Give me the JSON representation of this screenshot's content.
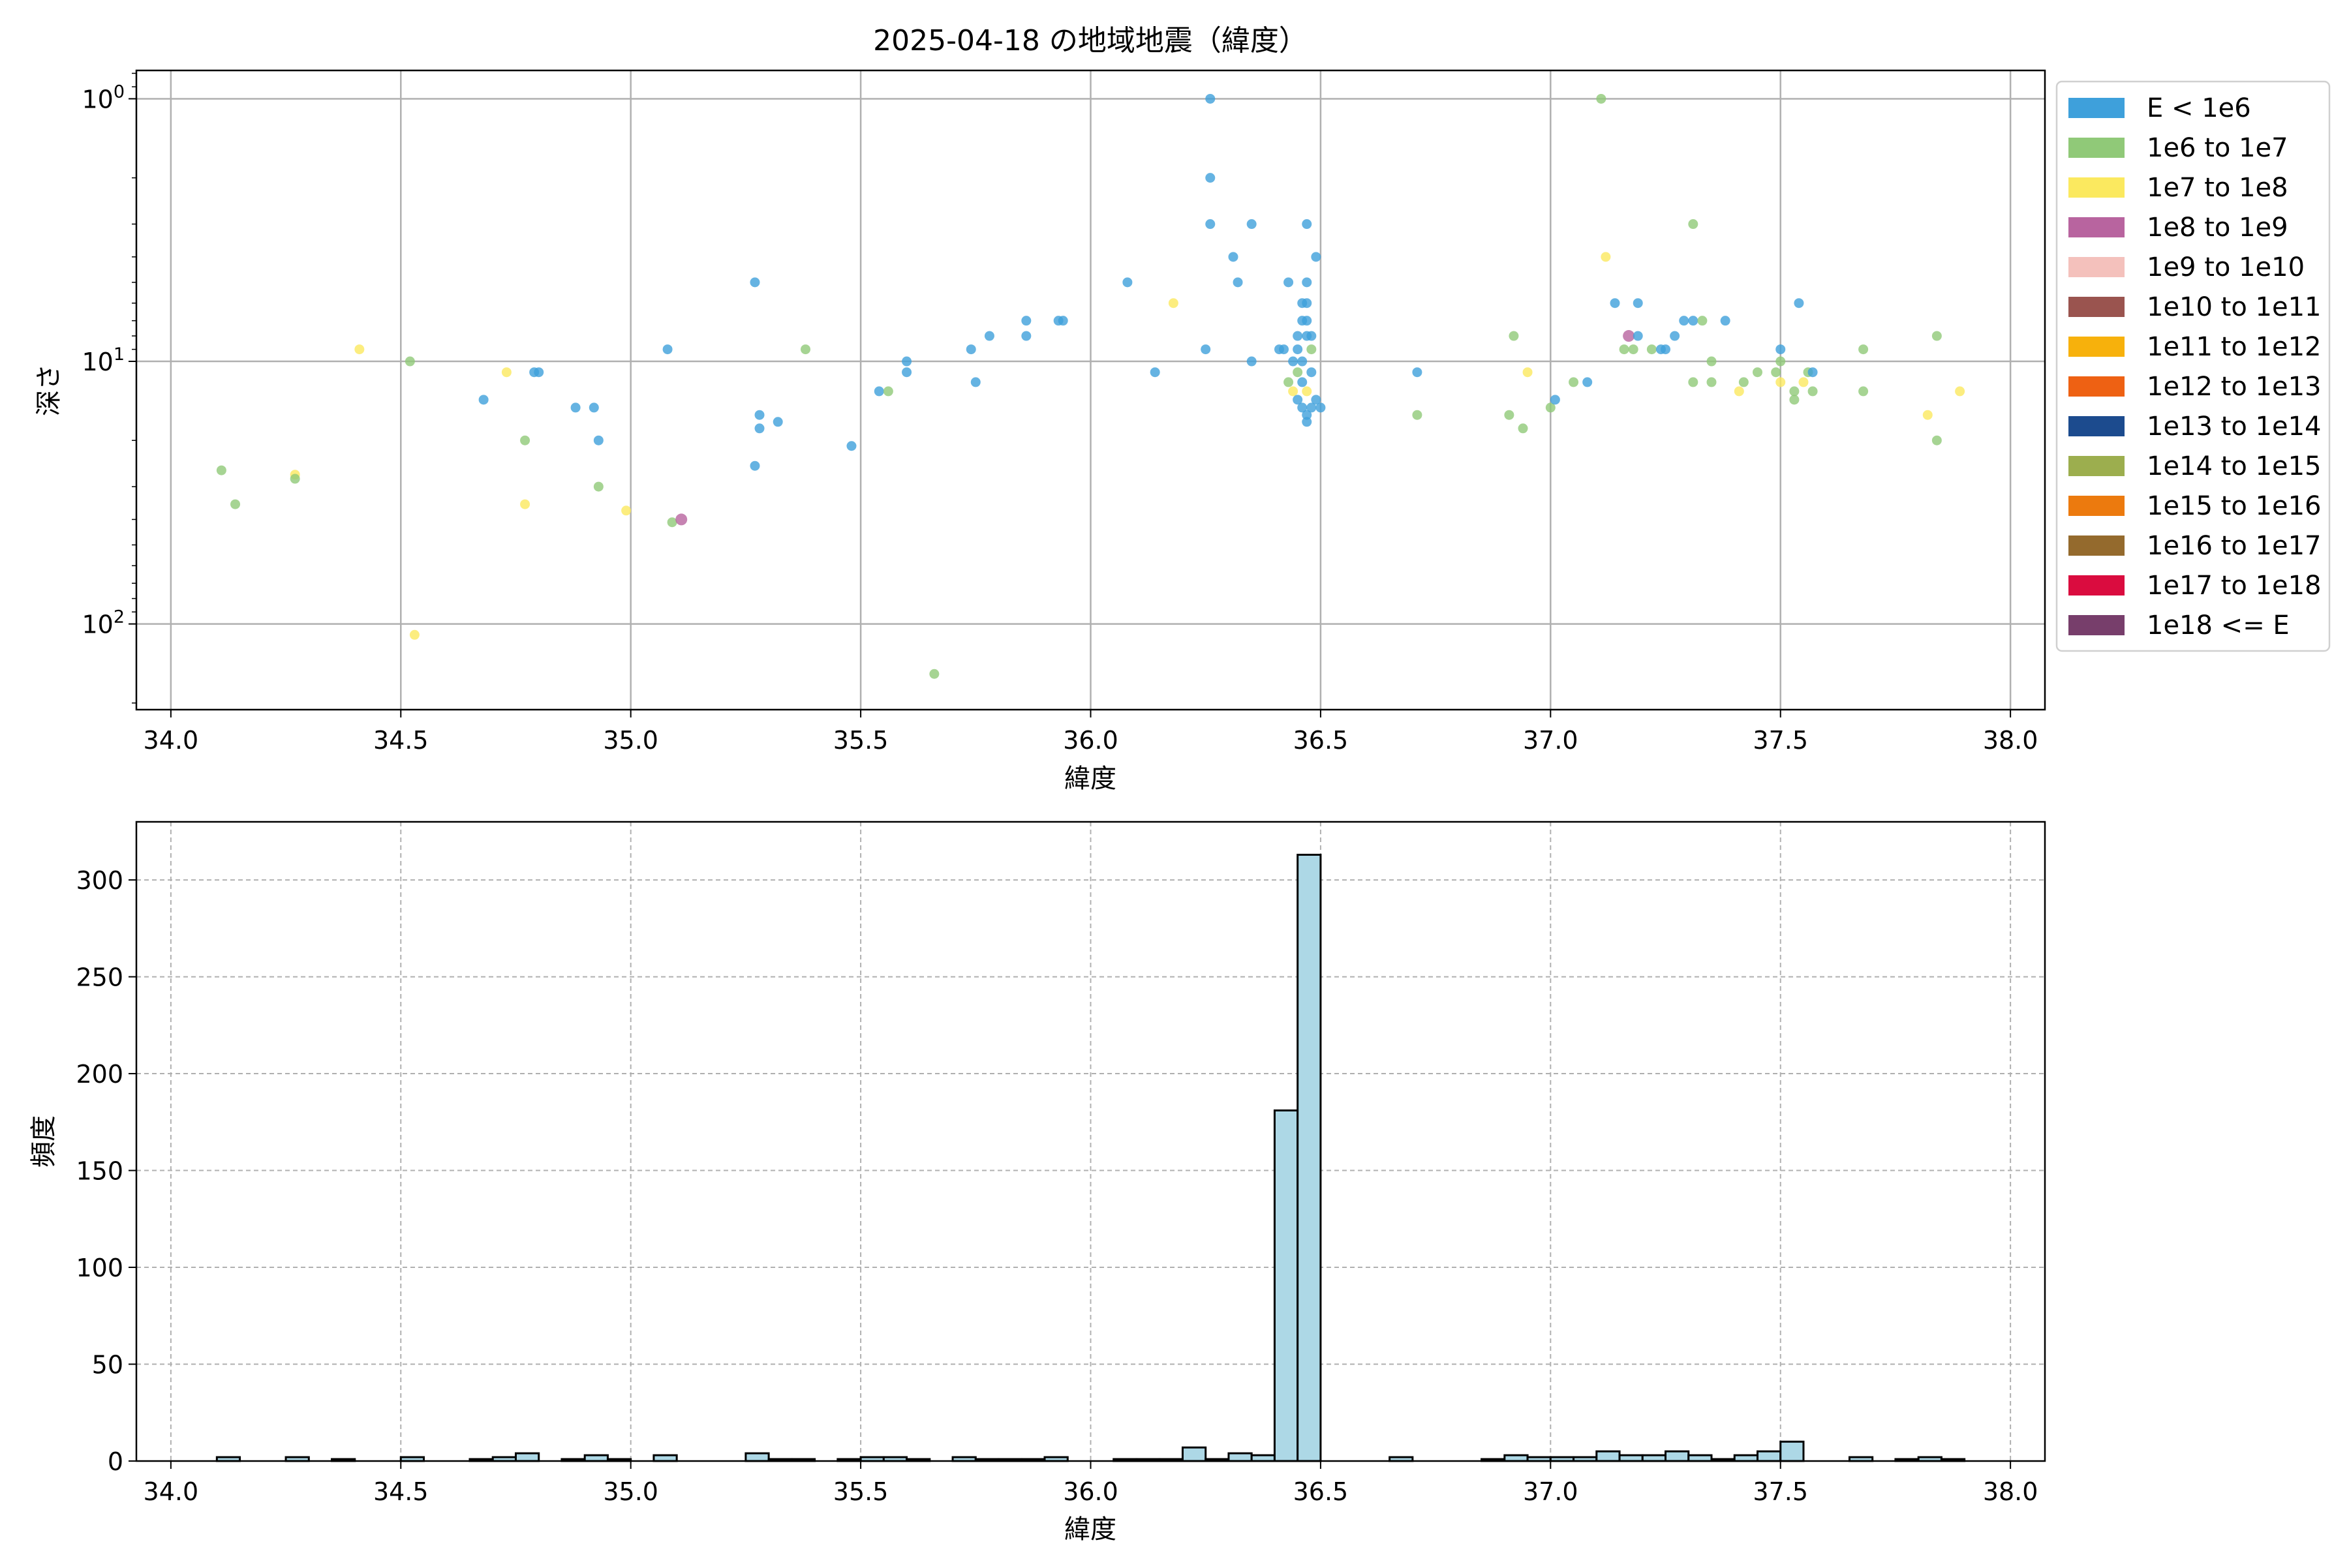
{
  "chart_data": [
    {
      "type": "scatter",
      "title": "2025-04-18 の地域地震（緯度）",
      "xlabel": "緯度",
      "ylabel": "深さ",
      "xlim": [
        33.925,
        38.075
      ],
      "ylim": [
        0.78,
        212
      ],
      "yscale": "log",
      "y_inverted": true,
      "x_ticks": [
        "34.0",
        "34.5",
        "35.0",
        "35.5",
        "36.0",
        "36.5",
        "37.0",
        "37.5",
        "38.0"
      ],
      "y_ticks": [
        {
          "value": 1,
          "base": "10",
          "exp": "0"
        },
        {
          "value": 10,
          "base": "10",
          "exp": "1"
        },
        {
          "value": 100,
          "base": "10",
          "exp": "2"
        }
      ],
      "grid": true,
      "legend_position": "outside-right",
      "legend": [
        {
          "label": "E < 1e6",
          "color": "#3ea0db"
        },
        {
          "label": "1e6 to 1e7",
          "color": "#90c978"
        },
        {
          "label": "1e7 to 1e8",
          "color": "#fbe95f"
        },
        {
          "label": "1e8 to 1e9",
          "color": "#b8649f"
        },
        {
          "label": "1e9 to 1e10",
          "color": "#f4c1bc"
        },
        {
          "label": "1e10 to 1e11",
          "color": "#9a544f"
        },
        {
          "label": "1e11 to 1e12",
          "color": "#f7b10c"
        },
        {
          "label": "1e12 to 1e13",
          "color": "#ee6113"
        },
        {
          "label": "1e13 to 1e14",
          "color": "#1c4b8e"
        },
        {
          "label": "1e14 to 1e15",
          "color": "#9cae4e"
        },
        {
          "label": "1e15 to 1e16",
          "color": "#ec7a0e"
        },
        {
          "label": "1e16 to 1e17",
          "color": "#946a2d"
        },
        {
          "label": "1e17 to 1e18",
          "color": "#da0c3f"
        },
        {
          "label": "1e18 <= E",
          "color": "#773e6b"
        }
      ],
      "points": [
        [
          34.11,
          26,
          1
        ],
        [
          34.14,
          35,
          1
        ],
        [
          34.27,
          27,
          2
        ],
        [
          34.27,
          28,
          1
        ],
        [
          34.41,
          9,
          2
        ],
        [
          34.52,
          10,
          1
        ],
        [
          34.53,
          110,
          2
        ],
        [
          34.68,
          14,
          0
        ],
        [
          34.73,
          11,
          2
        ],
        [
          34.77,
          20,
          1
        ],
        [
          34.77,
          35,
          2
        ],
        [
          34.79,
          11,
          0
        ],
        [
          34.8,
          11,
          0
        ],
        [
          34.88,
          15,
          0
        ],
        [
          34.92,
          15,
          0
        ],
        [
          34.93,
          20,
          0
        ],
        [
          34.93,
          30,
          1
        ],
        [
          34.99,
          37,
          2
        ],
        [
          35.08,
          9,
          0
        ],
        [
          35.09,
          41,
          1
        ],
        [
          35.11,
          40,
          3
        ],
        [
          35.27,
          5,
          0
        ],
        [
          35.27,
          25,
          0
        ],
        [
          35.28,
          16,
          0
        ],
        [
          35.28,
          18,
          0
        ],
        [
          35.32,
          17,
          0
        ],
        [
          35.38,
          9,
          1
        ],
        [
          35.48,
          21,
          0
        ],
        [
          35.54,
          13,
          0
        ],
        [
          35.56,
          13,
          1
        ],
        [
          35.6,
          10,
          0
        ],
        [
          35.6,
          11,
          0
        ],
        [
          35.66,
          155,
          1
        ],
        [
          35.74,
          9,
          0
        ],
        [
          35.75,
          12,
          0
        ],
        [
          35.78,
          8,
          0
        ],
        [
          35.86,
          7,
          0
        ],
        [
          35.86,
          8,
          0
        ],
        [
          35.93,
          7,
          0
        ],
        [
          35.94,
          7,
          0
        ],
        [
          36.08,
          5,
          0
        ],
        [
          36.14,
          11,
          0
        ],
        [
          36.18,
          6,
          2
        ],
        [
          36.25,
          9,
          0
        ],
        [
          36.26,
          1,
          0
        ],
        [
          36.26,
          2,
          0
        ],
        [
          36.26,
          3,
          0
        ],
        [
          36.31,
          4,
          0
        ],
        [
          36.32,
          5,
          0
        ],
        [
          36.35,
          3,
          0
        ],
        [
          36.35,
          10,
          0
        ],
        [
          36.41,
          9,
          0
        ],
        [
          36.42,
          9,
          0
        ],
        [
          36.43,
          12,
          1
        ],
        [
          36.43,
          5,
          0
        ],
        [
          36.44,
          10,
          0
        ],
        [
          36.44,
          13,
          2
        ],
        [
          36.45,
          8,
          0
        ],
        [
          36.45,
          9,
          0
        ],
        [
          36.45,
          11,
          1
        ],
        [
          36.45,
          14,
          0
        ],
        [
          36.46,
          6,
          0
        ],
        [
          36.46,
          7,
          0
        ],
        [
          36.46,
          10,
          0
        ],
        [
          36.46,
          12,
          0
        ],
        [
          36.46,
          15,
          0
        ],
        [
          36.47,
          3,
          0
        ],
        [
          36.47,
          5,
          0
        ],
        [
          36.47,
          6,
          0
        ],
        [
          36.47,
          7,
          0
        ],
        [
          36.47,
          8,
          0
        ],
        [
          36.47,
          13,
          2
        ],
        [
          36.47,
          16,
          0
        ],
        [
          36.47,
          17,
          0
        ],
        [
          36.48,
          8,
          0
        ],
        [
          36.48,
          9,
          1
        ],
        [
          36.48,
          11,
          0
        ],
        [
          36.48,
          15,
          0
        ],
        [
          36.49,
          4,
          0
        ],
        [
          36.49,
          14,
          0
        ],
        [
          36.5,
          15,
          0
        ],
        [
          36.71,
          11,
          0
        ],
        [
          36.71,
          16,
          1
        ],
        [
          36.91,
          16,
          1
        ],
        [
          36.92,
          8,
          1
        ],
        [
          36.94,
          18,
          1
        ],
        [
          36.95,
          11,
          2
        ],
        [
          37.0,
          15,
          1
        ],
        [
          37.01,
          14,
          0
        ],
        [
          37.05,
          12,
          1
        ],
        [
          37.08,
          12,
          0
        ],
        [
          37.11,
          1,
          1
        ],
        [
          37.12,
          4,
          2
        ],
        [
          37.14,
          6,
          0
        ],
        [
          37.16,
          9,
          1
        ],
        [
          37.17,
          8,
          3
        ],
        [
          37.18,
          9,
          1
        ],
        [
          37.19,
          6,
          0
        ],
        [
          37.19,
          8,
          0
        ],
        [
          37.22,
          9,
          1
        ],
        [
          37.24,
          9,
          0
        ],
        [
          37.25,
          9,
          0
        ],
        [
          37.27,
          8,
          0
        ],
        [
          37.29,
          7,
          0
        ],
        [
          37.31,
          3,
          1
        ],
        [
          37.31,
          7,
          0
        ],
        [
          37.31,
          12,
          1
        ],
        [
          37.33,
          7,
          1
        ],
        [
          37.35,
          10,
          1
        ],
        [
          37.35,
          12,
          1
        ],
        [
          37.38,
          7,
          0
        ],
        [
          37.41,
          13,
          2
        ],
        [
          37.42,
          12,
          1
        ],
        [
          37.45,
          11,
          1
        ],
        [
          37.49,
          11,
          1
        ],
        [
          37.5,
          9,
          0
        ],
        [
          37.5,
          10,
          1
        ],
        [
          37.5,
          12,
          2
        ],
        [
          37.53,
          13,
          1
        ],
        [
          37.53,
          14,
          1
        ],
        [
          37.54,
          6,
          0
        ],
        [
          37.55,
          12,
          2
        ],
        [
          37.56,
          11,
          1
        ],
        [
          37.57,
          11,
          0
        ],
        [
          37.57,
          13,
          1
        ],
        [
          37.68,
          9,
          1
        ],
        [
          37.68,
          13,
          1
        ],
        [
          37.82,
          16,
          2
        ],
        [
          37.84,
          8,
          1
        ],
        [
          37.84,
          20,
          1
        ],
        [
          37.89,
          13,
          2
        ]
      ]
    },
    {
      "type": "bar",
      "xlabel": "緯度",
      "ylabel": "頻度",
      "xlim": [
        33.925,
        38.075
      ],
      "ylim": [
        0,
        330
      ],
      "x_ticks": [
        "34.0",
        "34.5",
        "35.0",
        "35.5",
        "36.0",
        "36.5",
        "37.0",
        "37.5",
        "38.0"
      ],
      "y_ticks": [
        "0",
        "50",
        "100",
        "150",
        "200",
        "250",
        "300"
      ],
      "grid": true,
      "bar_color": "#add8e6",
      "bin_width": 0.05,
      "bins": [
        [
          34.1,
          2
        ],
        [
          34.25,
          2
        ],
        [
          34.35,
          1
        ],
        [
          34.5,
          2
        ],
        [
          34.65,
          1
        ],
        [
          34.7,
          2
        ],
        [
          34.75,
          4
        ],
        [
          34.85,
          1
        ],
        [
          34.9,
          3
        ],
        [
          34.95,
          1
        ],
        [
          35.05,
          3
        ],
        [
          35.25,
          4
        ],
        [
          35.3,
          1
        ],
        [
          35.35,
          1
        ],
        [
          35.45,
          1
        ],
        [
          35.5,
          2
        ],
        [
          35.55,
          2
        ],
        [
          35.6,
          1
        ],
        [
          35.7,
          2
        ],
        [
          35.75,
          1
        ],
        [
          35.8,
          1
        ],
        [
          35.85,
          1
        ],
        [
          35.9,
          2
        ],
        [
          36.05,
          1
        ],
        [
          36.1,
          1
        ],
        [
          36.15,
          1
        ],
        [
          36.2,
          7
        ],
        [
          36.25,
          1
        ],
        [
          36.3,
          4
        ],
        [
          36.35,
          3
        ],
        [
          36.4,
          181
        ],
        [
          36.45,
          313
        ],
        [
          36.65,
          2
        ],
        [
          36.85,
          1
        ],
        [
          36.9,
          3
        ],
        [
          36.95,
          2
        ],
        [
          37.0,
          2
        ],
        [
          37.05,
          2
        ],
        [
          37.1,
          5
        ],
        [
          37.15,
          3
        ],
        [
          37.2,
          3
        ],
        [
          37.25,
          5
        ],
        [
          37.3,
          3
        ],
        [
          37.35,
          1
        ],
        [
          37.4,
          3
        ],
        [
          37.45,
          5
        ],
        [
          37.5,
          10
        ],
        [
          37.65,
          2
        ],
        [
          37.75,
          1
        ],
        [
          37.8,
          2
        ],
        [
          37.85,
          1
        ]
      ]
    }
  ]
}
